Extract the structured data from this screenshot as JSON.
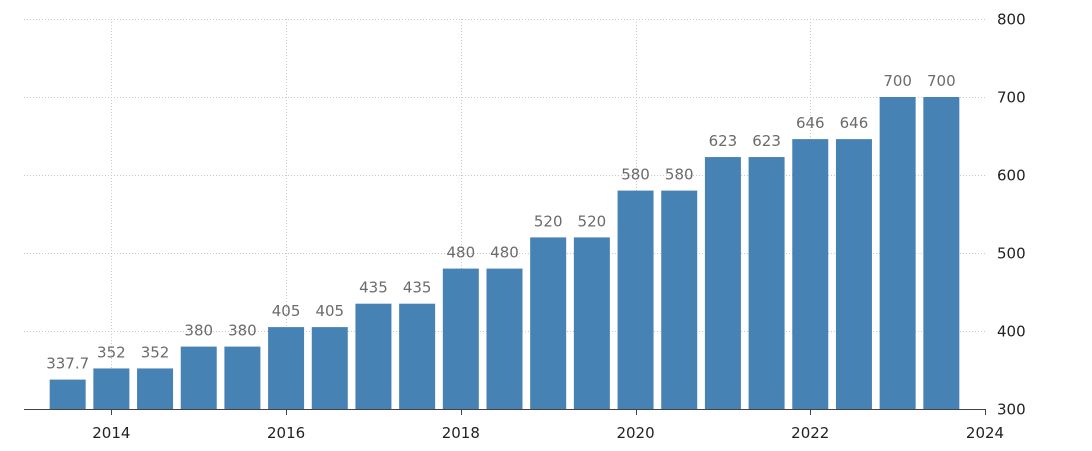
{
  "chart_data": {
    "type": "bar",
    "x": [
      2013.5,
      2014,
      2014.5,
      2015,
      2015.5,
      2016,
      2016.5,
      2017,
      2017.5,
      2018,
      2018.5,
      2019,
      2019.5,
      2020,
      2020.5,
      2021,
      2021.5,
      2022,
      2022.5,
      2023,
      2023.5
    ],
    "values": [
      337.7,
      352,
      352,
      380,
      380,
      405,
      405,
      435,
      435,
      480,
      480,
      520,
      520,
      580,
      580,
      623,
      623,
      646,
      646,
      700,
      700
    ],
    "data_labels": [
      "337.7",
      "352",
      "352",
      "380",
      "380",
      "405",
      "405",
      "435",
      "435",
      "480",
      "480",
      "520",
      "520",
      "580",
      "580",
      "623",
      "623",
      "646",
      "646",
      "700",
      "700"
    ],
    "x_ticks": [
      "2014",
      "2016",
      "2018",
      "2020",
      "2022",
      "2024"
    ],
    "y_ticks": [
      "300",
      "400",
      "500",
      "600",
      "700",
      "800"
    ],
    "xlim": [
      2013.0,
      2024.0
    ],
    "ylim": [
      300,
      800
    ],
    "yaxis_position": "right",
    "grid": true,
    "colors": {
      "bar": "#4682b4",
      "grid": "#c8c8c8",
      "data_label": "#6b6b6b",
      "tick_label": "#222222"
    },
    "title": "",
    "xlabel": "",
    "ylabel": ""
  }
}
